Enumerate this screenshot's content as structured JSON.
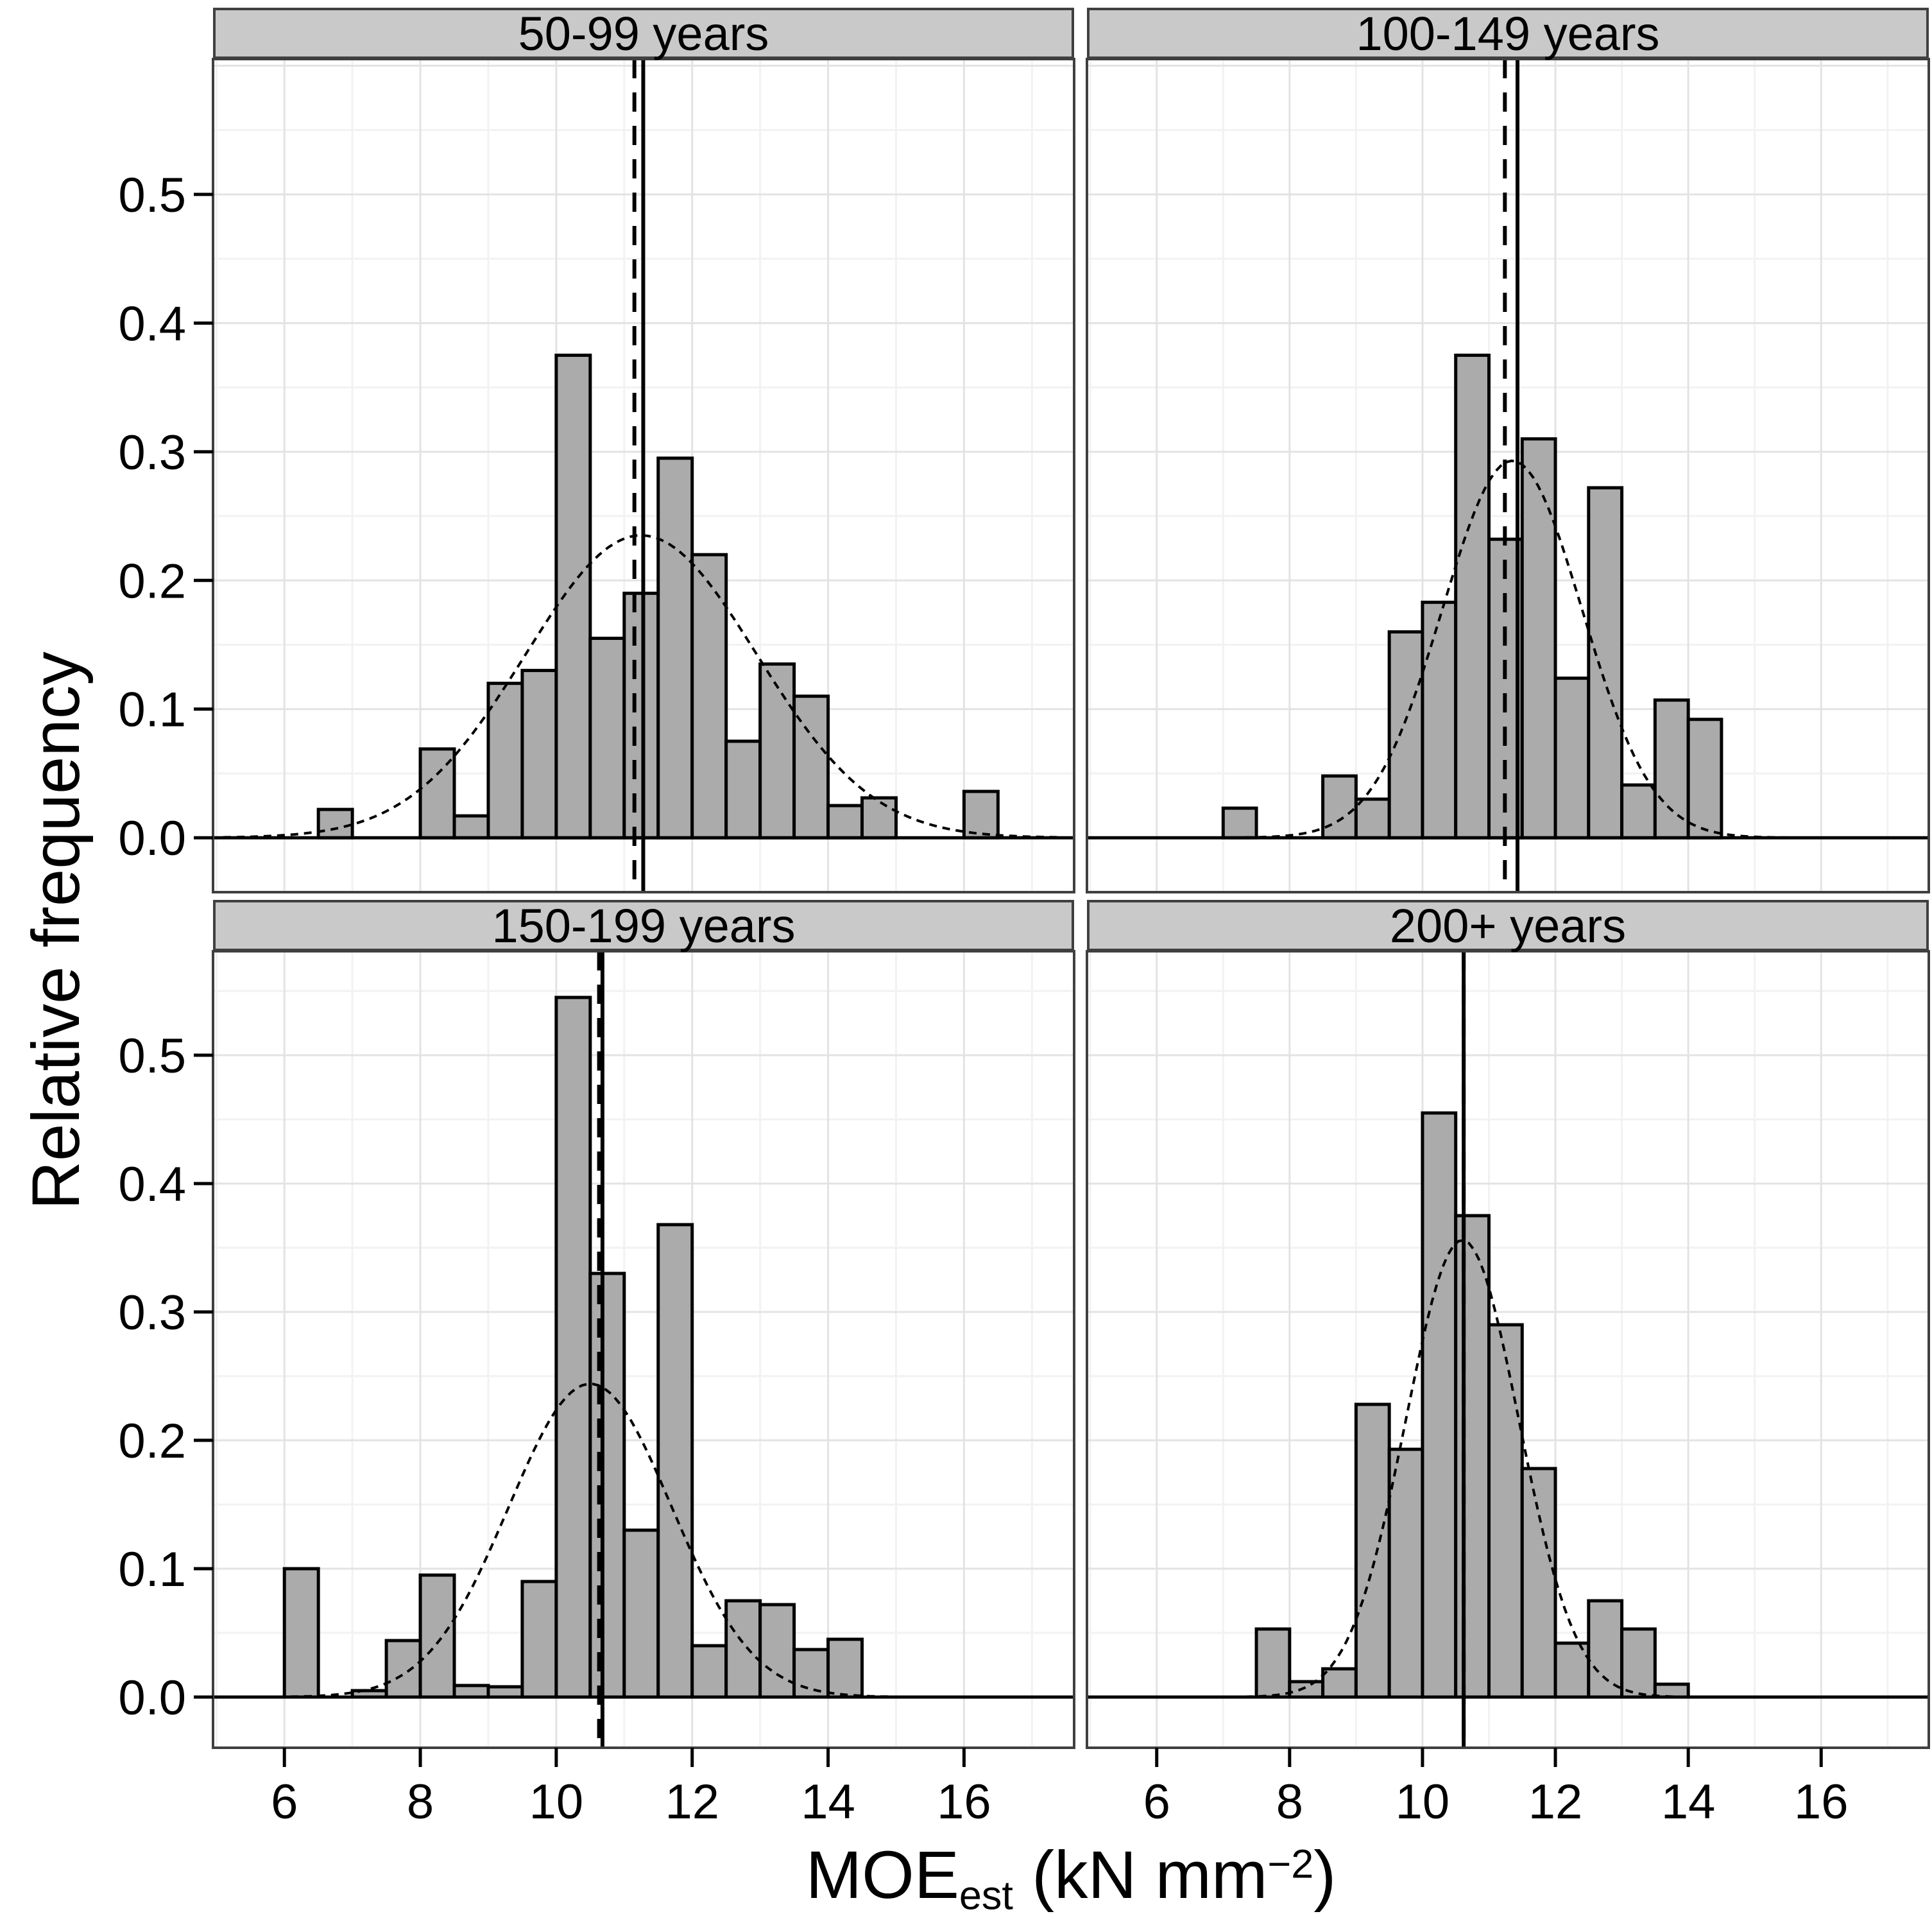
{
  "figure": {
    "ylabel": "Relative frequency",
    "xlabel": {
      "base": "MOE",
      "sub": "est",
      "unit": " (kN mm",
      "sup": "−2",
      "close": ")"
    }
  },
  "axes": {
    "x_tick_labels": [
      "6",
      "8",
      "10",
      "12",
      "14",
      "16"
    ],
    "x_tick_values": [
      6,
      8,
      10,
      12,
      14,
      16
    ],
    "x_minor_values": [
      5,
      7,
      9,
      11,
      13,
      15,
      17
    ],
    "y_tick_labels": [
      "0.0",
      "0.1",
      "0.2",
      "0.3",
      "0.4",
      "0.5"
    ],
    "y_tick_values": [
      0.0,
      0.1,
      0.2,
      0.3,
      0.4,
      0.5
    ],
    "y_minor_values": [
      0.05,
      0.15,
      0.25,
      0.35,
      0.45,
      0.55
    ],
    "x_range": [
      4.95,
      17.62
    ],
    "y_range_top_row": [
      -0.0423,
      0.6052
    ],
    "y_range_bottom_row": [
      -0.0395,
      0.581
    ]
  },
  "colors": {
    "bar_fill": "#ababab",
    "bar_stroke": "#000000",
    "strip_bg": "#c9c9c9",
    "panel_border": "#404040",
    "grid_major": "#e3e3e3",
    "grid_minor": "#f2f2f2",
    "panel_bg": "#ffffff",
    "line_color": "#000000",
    "text_color": "#000000"
  },
  "chart_data": {
    "type": "bar",
    "subtype": "faceted-histogram-with-density",
    "bin_width": 0.5,
    "grid": "on",
    "title": "",
    "xlabel": "MOE_est (kN mm^-2)",
    "ylabel": "Relative frequency",
    "facets": [
      {
        "label": "50-99 years",
        "row": 0,
        "col": 0,
        "bars": [
          [
            6.5,
            0.022
          ],
          [
            8.0,
            0.069
          ],
          [
            8.5,
            0.017
          ],
          [
            9.0,
            0.12
          ],
          [
            9.5,
            0.13
          ],
          [
            10.0,
            0.375
          ],
          [
            10.5,
            0.155
          ],
          [
            11.0,
            0.19
          ],
          [
            11.5,
            0.295
          ],
          [
            12.0,
            0.22
          ],
          [
            12.5,
            0.075
          ],
          [
            13.0,
            0.135
          ],
          [
            13.5,
            0.11
          ],
          [
            14.0,
            0.025
          ],
          [
            14.5,
            0.031
          ],
          [
            16.0,
            0.036
          ]
        ],
        "normal_curve": {
          "mean": 11.25,
          "sd": 1.7,
          "peak": 0.235
        },
        "mean_line": 11.28,
        "median_line": 11.15
      },
      {
        "label": "100-149 years",
        "row": 0,
        "col": 1,
        "bars": [
          [
            7.0,
            0.023
          ],
          [
            8.5,
            0.048
          ],
          [
            9.0,
            0.03
          ],
          [
            9.5,
            0.16
          ],
          [
            10.0,
            0.183
          ],
          [
            10.5,
            0.375
          ],
          [
            11.0,
            0.232
          ],
          [
            11.5,
            0.31
          ],
          [
            12.0,
            0.124
          ],
          [
            12.5,
            0.272
          ],
          [
            13.0,
            0.041
          ],
          [
            13.5,
            0.107
          ],
          [
            14.0,
            0.092
          ]
        ],
        "normal_curve": {
          "mean": 11.35,
          "sd": 1.05,
          "peak": 0.293
        },
        "mean_line": 11.43,
        "median_line": 11.24
      },
      {
        "label": "150-199 years",
        "row": 1,
        "col": 0,
        "bars": [
          [
            6.0,
            0.1
          ],
          [
            7.0,
            0.005
          ],
          [
            7.5,
            0.044
          ],
          [
            8.0,
            0.095
          ],
          [
            8.5,
            0.009
          ],
          [
            9.0,
            0.008
          ],
          [
            9.5,
            0.09
          ],
          [
            10.0,
            0.545
          ],
          [
            10.5,
            0.33
          ],
          [
            11.0,
            0.13
          ],
          [
            11.5,
            0.368
          ],
          [
            12.0,
            0.04
          ],
          [
            12.5,
            0.075
          ],
          [
            13.0,
            0.072
          ],
          [
            13.5,
            0.037
          ],
          [
            14.0,
            0.045
          ]
        ],
        "normal_curve": {
          "mean": 10.5,
          "sd": 1.2,
          "peak": 0.244
        },
        "mean_line": 10.68,
        "median_line": 10.63
      },
      {
        "label": "200+ years",
        "row": 1,
        "col": 1,
        "bars": [
          [
            7.5,
            0.053
          ],
          [
            8.0,
            0.012
          ],
          [
            8.5,
            0.022
          ],
          [
            9.0,
            0.228
          ],
          [
            9.5,
            0.193
          ],
          [
            10.0,
            0.455
          ],
          [
            10.5,
            0.375
          ],
          [
            11.0,
            0.29
          ],
          [
            11.5,
            0.178
          ],
          [
            12.0,
            0.042
          ],
          [
            12.5,
            0.075
          ],
          [
            13.0,
            0.053
          ],
          [
            13.5,
            0.01
          ]
        ],
        "normal_curve": {
          "mean": 10.6,
          "sd": 0.85,
          "peak": 0.356
        },
        "mean_line": 10.62,
        "median_line": 10.62
      }
    ]
  }
}
